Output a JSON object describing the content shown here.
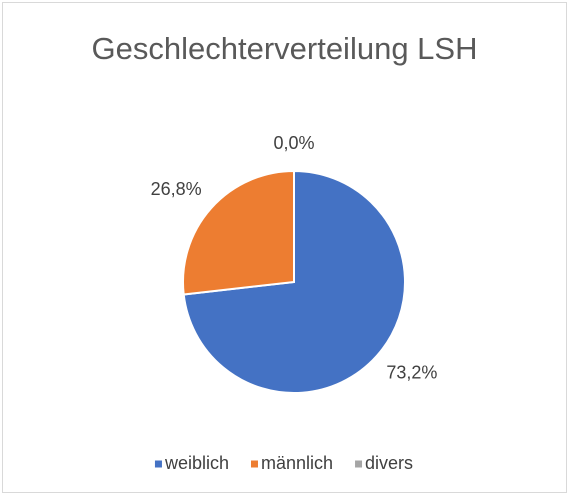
{
  "chart_data": {
    "type": "pie",
    "title": "Geschlechterverteilung LSH",
    "categories": [
      "weiblich",
      "männlich",
      "divers"
    ],
    "values": [
      73.2,
      26.8,
      0.0
    ],
    "value_labels": [
      "73,2%",
      "26,8%",
      "0,0%"
    ],
    "colors": [
      "#4472c4",
      "#ed7d31",
      "#a5a5a5"
    ],
    "legend": "bottom"
  }
}
